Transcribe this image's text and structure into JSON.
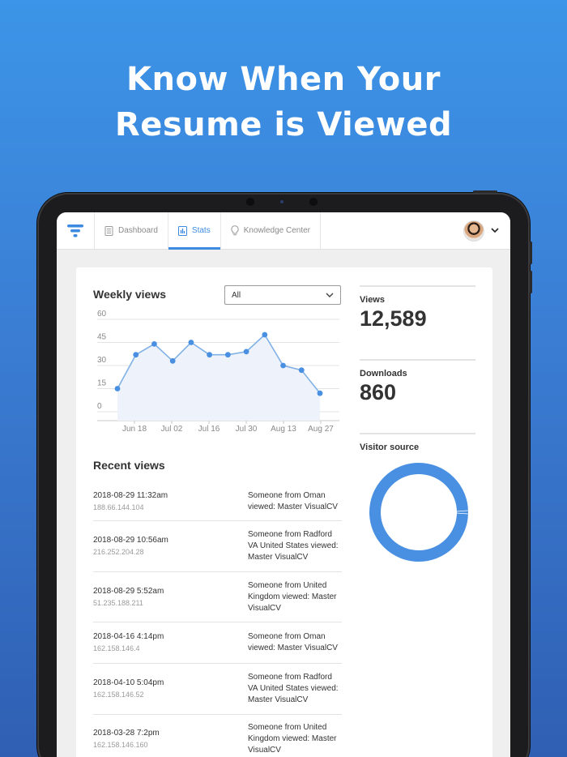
{
  "headline": {
    "line1": "Know When Your",
    "line2": "Resume is Viewed"
  },
  "nav": {
    "tabs": [
      {
        "label": "Dashboard",
        "icon": "document-icon"
      },
      {
        "label": "Stats",
        "icon": "bar-chart-icon",
        "active": true
      },
      {
        "label": "Knowledge Center",
        "icon": "lightbulb-icon"
      }
    ]
  },
  "weekly": {
    "title": "Weekly views",
    "filter_value": "All"
  },
  "chart_data": {
    "type": "area",
    "title": "Weekly views",
    "y_ticks": [
      "60",
      "45",
      "30",
      "15",
      "0"
    ],
    "x_ticks": [
      "Jun 18",
      "Jul 02",
      "Jul 16",
      "Jul 30",
      "Aug 13",
      "Aug 27"
    ],
    "ylim": [
      0,
      60
    ],
    "values": [
      15,
      37,
      44,
      33,
      45,
      37,
      37,
      39,
      50,
      30,
      27,
      12
    ],
    "line_color": "#7fb1e6",
    "fill_color": "#eef3fb",
    "point_color": "#4a90e2"
  },
  "recent": {
    "title": "Recent views",
    "rows": [
      {
        "when": "2018-08-29 11:32am",
        "ip": "188.66.144.104",
        "msg": "Someone from Oman viewed: Master VisualCV"
      },
      {
        "when": "2018-08-29 10:56am",
        "ip": "216.252.204.28",
        "msg": "Someone from Radford VA United States viewed: Master VisualCV"
      },
      {
        "when": "2018-08-29 5:52am",
        "ip": "51.235.188.211",
        "msg": "Someone from United Kingdom viewed: Master VisualCV"
      },
      {
        "when": "2018-04-16 4:14pm",
        "ip": "162.158.146.4",
        "msg": "Someone from Oman viewed: Master VisualCV"
      },
      {
        "when": "2018-04-10 5:04pm",
        "ip": "162.158.146.52",
        "msg": "Someone from Radford VA United States viewed: Master VisualCV"
      },
      {
        "when": "2018-03-28 7:2pm",
        "ip": "162.158.146.160",
        "msg": "Someone from United Kingdom viewed: Master VisualCV"
      }
    ]
  },
  "stats": {
    "views_label": "Views",
    "views_value": "12,589",
    "downloads_label": "Downloads",
    "downloads_value": "860",
    "visitor_label": "Visitor source"
  },
  "visitor_source": {
    "color": "#4a90e2"
  }
}
